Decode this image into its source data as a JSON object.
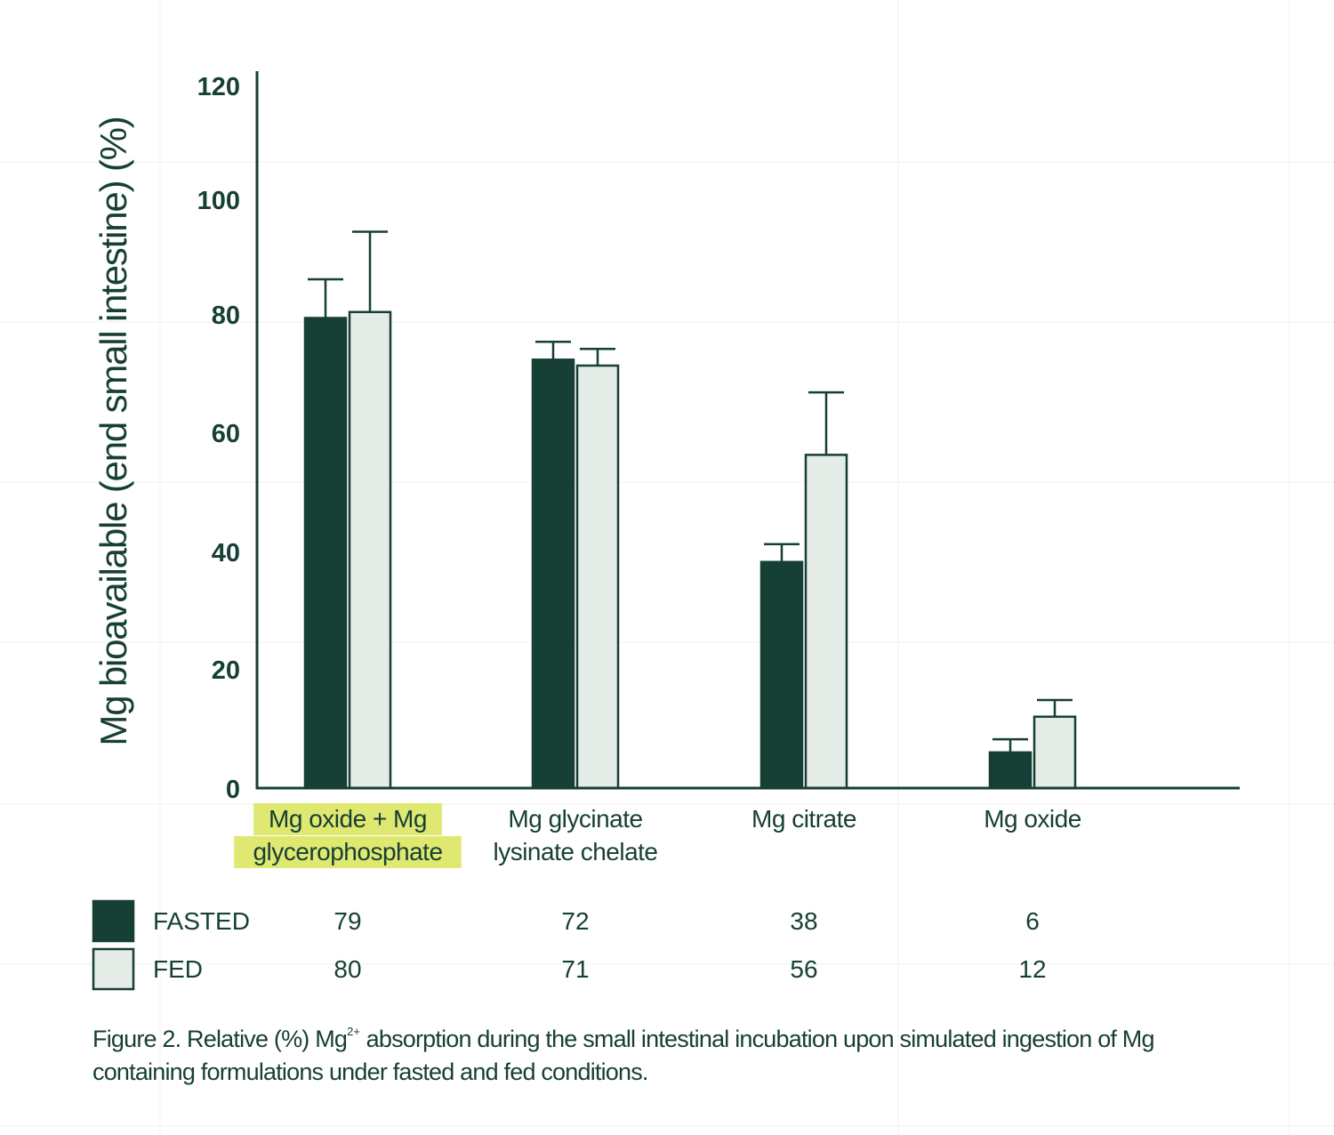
{
  "chart_data": {
    "type": "bar",
    "ylabel": "Mg bioavailable (end small intestine) (%)",
    "ylim": [
      0,
      120
    ],
    "yticks": [
      0,
      20,
      40,
      60,
      80,
      100,
      120
    ],
    "categories": [
      {
        "lines": [
          "Mg oxide + Mg",
          "glycerophosphate"
        ],
        "highlight": true
      },
      {
        "lines": [
          "Mg glycinate",
          "lysinate chelate"
        ],
        "highlight": false
      },
      {
        "lines": [
          "Mg citrate"
        ],
        "highlight": false
      },
      {
        "lines": [
          "Mg oxide"
        ],
        "highlight": false
      }
    ],
    "series": [
      {
        "name": "FASTED",
        "values": [
          79,
          72,
          38,
          6
        ],
        "errors": [
          6.5,
          3,
          3,
          2.2
        ],
        "table": [
          "79",
          "72",
          "38",
          "6"
        ],
        "color": "#163f35"
      },
      {
        "name": "FED",
        "values": [
          80,
          71,
          56,
          12
        ],
        "errors": [
          13.5,
          2.8,
          10.5,
          2.8
        ],
        "table": [
          "80",
          "71",
          "56",
          "12"
        ],
        "color": "#e5ece8"
      }
    ],
    "grid": false,
    "legend": "bottom-left table",
    "colors": {
      "axis": "#163f35",
      "highlight": "#dfe870"
    }
  },
  "caption": {
    "before": "Figure 2. Relative (%) Mg",
    "sup": "2+",
    "after": " absorption during the small intestinal incubation upon simulated ingestion of Mg containing formulations under fasted and fed conditions."
  }
}
